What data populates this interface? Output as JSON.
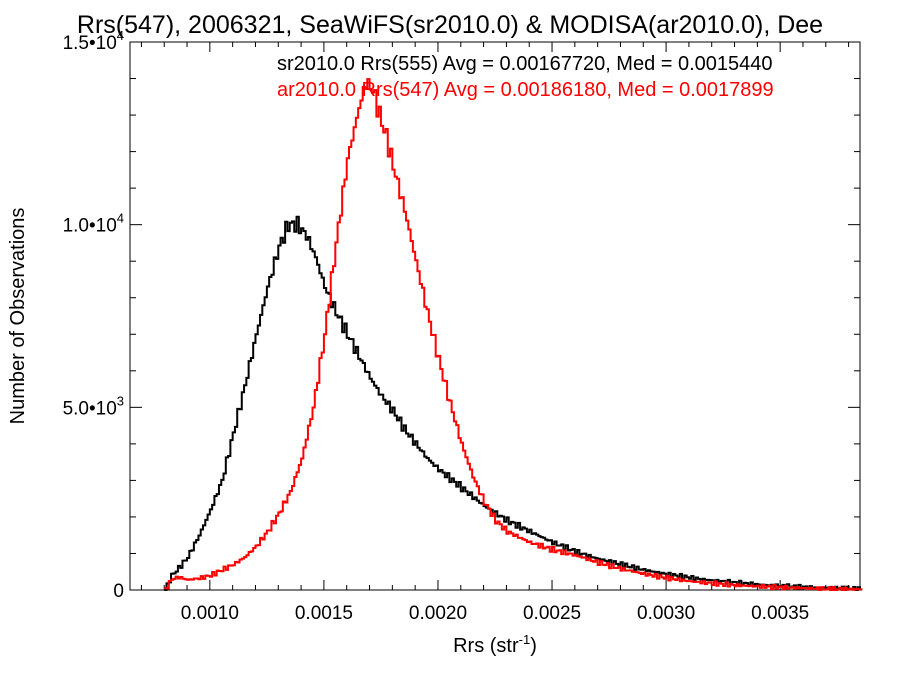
{
  "chart_data": {
    "type": "line",
    "title": "Rrs(547), 2006321, SeaWiFS(sr2010.0) & MODISA(ar2010.0), Dee",
    "xlabel": "Rrs (str",
    "xlabel_sup": "-1",
    "xlabel_end": ")",
    "ylabel": "Number of Observations",
    "xlim": [
      0.00065,
      0.00385
    ],
    "ylim": [
      0,
      15000
    ],
    "x_ticks": [
      {
        "value": 0.001,
        "label": "0.0010"
      },
      {
        "value": 0.0015,
        "label": "0.0015"
      },
      {
        "value": 0.002,
        "label": "0.0020"
      },
      {
        "value": 0.0025,
        "label": "0.0025"
      },
      {
        "value": 0.003,
        "label": "0.0030"
      },
      {
        "value": 0.0035,
        "label": "0.0035"
      }
    ],
    "y_ticks": [
      {
        "value": 0,
        "mant": "0",
        "exp": ""
      },
      {
        "value": 5000,
        "mant": "5.0•10",
        "exp": "3"
      },
      {
        "value": 10000,
        "mant": "1.0•10",
        "exp": "4"
      },
      {
        "value": 15000,
        "mant": "1.5•10",
        "exp": "4"
      }
    ],
    "annotations": [
      {
        "text": "sr2010.0 Rrs(555) Avg = 0.00167720, Med = 0.0015440",
        "color": "#000000"
      },
      {
        "text": "ar2010.0 Rrs(547) Avg = 0.00186180, Med = 0.0017899",
        "color": "#ff0000"
      }
    ],
    "series": [
      {
        "color": "#000000",
        "x": [
          0.0008,
          0.00083,
          0.00086,
          0.0009,
          0.00095,
          0.001,
          0.00105,
          0.0011,
          0.00115,
          0.0012,
          0.00125,
          0.0013,
          0.00134,
          0.00138,
          0.00142,
          0.00146,
          0.0015,
          0.00155,
          0.0016,
          0.00165,
          0.0017,
          0.00175,
          0.0018,
          0.00185,
          0.0019,
          0.00195,
          0.002,
          0.0021,
          0.0022,
          0.0023,
          0.0024,
          0.0025,
          0.0026,
          0.0027,
          0.0028,
          0.0029,
          0.003,
          0.0031,
          0.0032,
          0.0033,
          0.0034,
          0.0035,
          0.0036,
          0.0037,
          0.00385
        ],
        "y": [
          0,
          400,
          600,
          900,
          1500,
          2200,
          3000,
          4300,
          5600,
          7000,
          8300,
          9400,
          10000,
          10000,
          9700,
          9100,
          8300,
          7600,
          7000,
          6400,
          5800,
          5300,
          4900,
          4400,
          4000,
          3600,
          3300,
          2800,
          2300,
          1900,
          1600,
          1300,
          1050,
          850,
          700,
          550,
          430,
          340,
          260,
          200,
          150,
          110,
          80,
          60,
          30
        ]
      },
      {
        "color": "#ff0000",
        "x": [
          0.0008,
          0.00083,
          0.00086,
          0.0009,
          0.00095,
          0.001,
          0.00105,
          0.0011,
          0.00115,
          0.0012,
          0.00125,
          0.0013,
          0.00135,
          0.0014,
          0.00145,
          0.0015,
          0.00155,
          0.0016,
          0.00165,
          0.00168,
          0.00171,
          0.00174,
          0.00177,
          0.0018,
          0.00185,
          0.0019,
          0.00195,
          0.002,
          0.00205,
          0.0021,
          0.00215,
          0.0022,
          0.00225,
          0.0023,
          0.0024,
          0.0025,
          0.0026,
          0.0027,
          0.0028,
          0.0029,
          0.003,
          0.0031,
          0.0032,
          0.0033,
          0.0034,
          0.0035,
          0.0036,
          0.0037,
          0.00385
        ],
        "y": [
          0,
          300,
          350,
          280,
          320,
          400,
          550,
          700,
          900,
          1200,
          1600,
          2100,
          2700,
          3600,
          5000,
          7000,
          9500,
          11800,
          13200,
          13900,
          13700,
          13000,
          12400,
          11600,
          10400,
          9000,
          7600,
          6300,
          5100,
          4000,
          3100,
          2400,
          1900,
          1600,
          1300,
          1100,
          950,
          750,
          580,
          440,
          330,
          240,
          180,
          130,
          100,
          70,
          50,
          30,
          20
        ]
      }
    ]
  }
}
